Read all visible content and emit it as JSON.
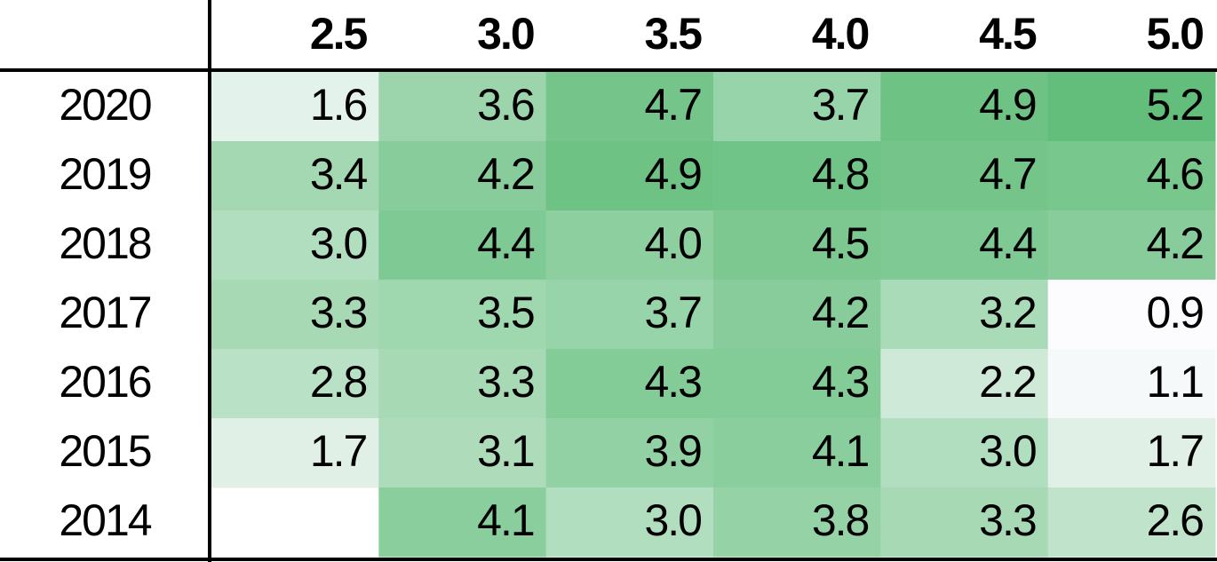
{
  "table": {
    "columns": [
      "2.5",
      "3.0",
      "3.5",
      "4.0",
      "4.5",
      "5.0"
    ],
    "rows": [
      {
        "label": "2020",
        "cells": [
          "1.6",
          "3.6",
          "4.7",
          "3.7",
          "4.9",
          "5.2"
        ]
      },
      {
        "label": "2019",
        "cells": [
          "3.4",
          "4.2",
          "4.9",
          "4.8",
          "4.7",
          "4.6"
        ]
      },
      {
        "label": "2018",
        "cells": [
          "3.0",
          "4.4",
          "4.0",
          "4.5",
          "4.4",
          "4.2"
        ]
      },
      {
        "label": "2017",
        "cells": [
          "3.3",
          "3.5",
          "3.7",
          "4.2",
          "3.2",
          "0.9"
        ]
      },
      {
        "label": "2016",
        "cells": [
          "2.8",
          "3.3",
          "4.3",
          "4.3",
          "2.2",
          "1.1"
        ]
      },
      {
        "label": "2015",
        "cells": [
          "1.7",
          "3.1",
          "3.9",
          "4.1",
          "3.0",
          "1.7"
        ]
      },
      {
        "label": "2014",
        "cells": [
          null,
          "4.1",
          "3.0",
          "3.8",
          "3.3",
          "2.6"
        ]
      }
    ]
  }
}
